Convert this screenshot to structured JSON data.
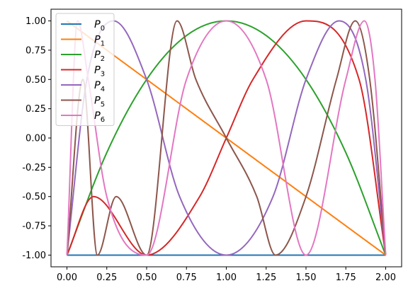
{
  "chart_data": {
    "type": "line",
    "xlim": [
      -0.1,
      2.1
    ],
    "ylim": [
      -1.1,
      1.1
    ],
    "xticks": [
      "0.00",
      "0.25",
      "0.50",
      "0.75",
      "1.00",
      "1.25",
      "1.50",
      "1.75",
      "2.00"
    ],
    "yticks": [
      "-1.00",
      "-0.75",
      "-0.50",
      "-0.25",
      "0.00",
      "0.25",
      "0.50",
      "0.75",
      "1.00"
    ],
    "grid": false,
    "legend_position": "upper-left",
    "series": [
      {
        "name": "P",
        "sub": "0",
        "color": "#1f77b4",
        "x": [
          0,
          2
        ],
        "y": [
          -1,
          -1
        ]
      },
      {
        "name": "P",
        "sub": "1",
        "color": "#ff7f0e",
        "x": [
          0,
          2
        ],
        "y": [
          1,
          -1
        ]
      },
      {
        "name": "P",
        "sub": "2",
        "color": "#2ca02c",
        "x": [
          0,
          0.25,
          0.5,
          0.75,
          1,
          1.25,
          1.5,
          1.75,
          2
        ],
        "y": [
          -1,
          -0.125,
          0.5,
          0.875,
          1,
          0.875,
          0.5,
          -0.125,
          -1
        ]
      },
      {
        "name": "P",
        "sub": "3",
        "color": "#d62728",
        "x": [
          0,
          0.167,
          0.5,
          0.833,
          1,
          1.167,
          1.5,
          1.833,
          2
        ],
        "y": [
          -1,
          -0.5,
          -1,
          -0.5,
          0,
          0.5,
          1,
          0.5,
          -1
        ]
      },
      {
        "name": "P",
        "sub": "4",
        "color": "#9467bd",
        "x": [
          0,
          0.125,
          0.293,
          0.5,
          0.707,
          1,
          1.293,
          1.5,
          1.707,
          1.875,
          2
        ],
        "y": [
          -1,
          0.5,
          1,
          0.5,
          -0.5,
          -1,
          -0.5,
          0.5,
          1,
          0.5,
          -1
        ]
      },
      {
        "name": "P",
        "sub": "5",
        "color": "#8c564b",
        "x": [
          0,
          0.1,
          0.191,
          0.309,
          0.5,
          0.691,
          0.809,
          1,
          1.191,
          1.309,
          1.5,
          1.691,
          1.809,
          1.9,
          2
        ],
        "y": [
          -1,
          0.5,
          -1,
          -0.5,
          -1,
          1,
          0.5,
          0,
          -0.5,
          -1,
          -0.5,
          0.5,
          1,
          0.5,
          -1
        ]
      },
      {
        "name": "P",
        "sub": "6",
        "color": "#e377c2",
        "x": [
          0,
          0.067,
          0.134,
          0.25,
          0.5,
          0.75,
          1,
          1.25,
          1.5,
          1.75,
          1.866,
          1.933,
          2
        ],
        "y": [
          -1,
          1,
          0.5,
          -0.5,
          -1,
          0.5,
          1,
          0.5,
          -1,
          0.5,
          1,
          0.5,
          -1
        ]
      }
    ]
  }
}
